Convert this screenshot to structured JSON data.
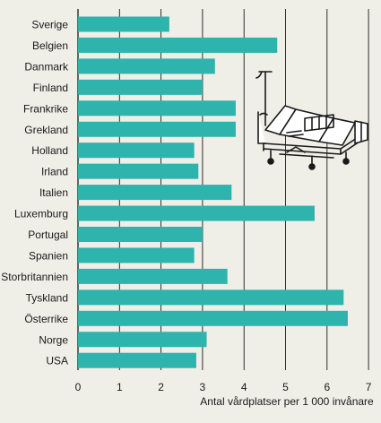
{
  "chart_data": {
    "type": "bar",
    "orientation": "horizontal",
    "categories": [
      "Sverige",
      "Belgien",
      "Danmark",
      "Finland",
      "Frankrike",
      "Grekland",
      "Holland",
      "Irland",
      "Italien",
      "Luxemburg",
      "Portugal",
      "Spanien",
      "Storbritannien",
      "Tyskland",
      "Österrike",
      "Norge",
      "USA"
    ],
    "values": [
      2.2,
      4.8,
      3.3,
      3.0,
      3.8,
      3.8,
      2.8,
      2.9,
      3.7,
      5.7,
      3.0,
      2.8,
      3.6,
      6.4,
      6.5,
      3.1,
      2.85
    ],
    "xlabel": "Antal vårdplatser per 1 000 invånare",
    "ylabel": "",
    "xlim": [
      0,
      7
    ],
    "xticks": [
      "0",
      "1",
      "2",
      "3",
      "4",
      "5",
      "6",
      "7"
    ],
    "grid": "vertical",
    "bar_color": "#2fb3ad",
    "gridline_color": "#1a1a1a",
    "background_color": "#efeee7",
    "illustration": "hospital-bed"
  }
}
